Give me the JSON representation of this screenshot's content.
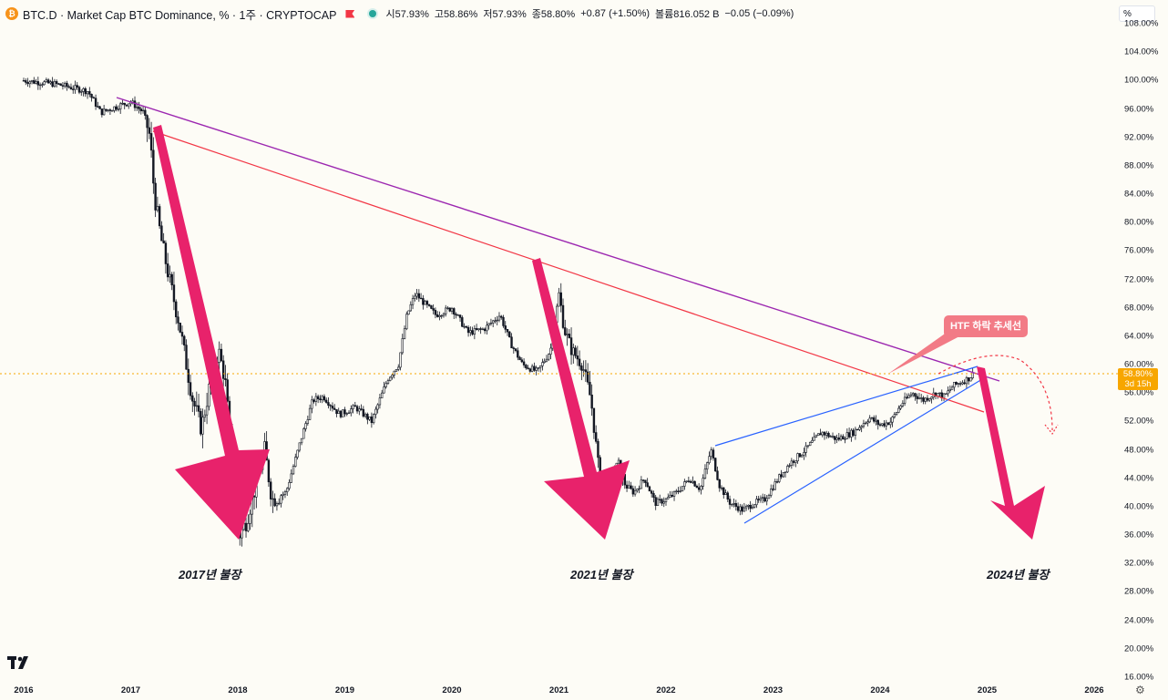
{
  "header": {
    "symbol": "BTC.D · Market Cap BTC Dominance, % · 1주 · CRYPTOCAP",
    "open": "시57.93%",
    "high": "고58.86%",
    "low": "저57.93%",
    "close": "종58.80%",
    "change": "+0.87 (+1.50%)",
    "volume": "볼륨816.052 B",
    "volume_change": "−0.05 (−0.09%)",
    "scale_button": "%"
  },
  "price_label": {
    "value": "58.80%",
    "countdown": "3d 15h"
  },
  "annotations": {
    "callout": "HTF 하락 추세선",
    "bull_2017": "2017년 불장",
    "bull_2021": "2021년 불장",
    "bull_2024": "2024년 불장"
  },
  "colors": {
    "background": "#fdfcf6",
    "candle": "#131722",
    "arrow": "#e8226b",
    "trend_purple": "#9c27b0",
    "trend_red": "#f23645",
    "wedge_blue": "#2962ff",
    "price_line": "#f7a600",
    "callout": "#f27b86"
  },
  "chart_data": {
    "type": "candlestick",
    "title": "BTC.D · Market Cap BTC Dominance, % · 1주 · CRYPTOCAP",
    "y_unit": "%",
    "ylim": [
      16,
      108
    ],
    "y_ticks": [
      "108.00%",
      "104.00%",
      "100.00%",
      "96.00%",
      "92.00%",
      "88.00%",
      "84.00%",
      "80.00%",
      "76.00%",
      "72.00%",
      "68.00%",
      "64.00%",
      "60.00%",
      "56.00%",
      "52.00%",
      "48.00%",
      "44.00%",
      "40.00%",
      "36.00%",
      "32.00%",
      "28.00%",
      "24.00%",
      "20.00%",
      "16.00%"
    ],
    "x_ticks": [
      "2016",
      "2017",
      "2018",
      "2019",
      "2020",
      "2021",
      "2022",
      "2023",
      "2024",
      "2025",
      "2026"
    ],
    "last_value": 58.8,
    "series": [
      {
        "name": "BTC.D",
        "points": [
          [
            2016.0,
            100.0
          ],
          [
            2016.3,
            99.5
          ],
          [
            2016.6,
            98.5
          ],
          [
            2016.72,
            95.5
          ],
          [
            2016.9,
            96.5
          ],
          [
            2017.0,
            97.0
          ],
          [
            2017.12,
            95.5
          ],
          [
            2017.18,
            92.0
          ],
          [
            2017.22,
            84.0
          ],
          [
            2017.28,
            78.0
          ],
          [
            2017.36,
            72.0
          ],
          [
            2017.45,
            66.0
          ],
          [
            2017.52,
            60.0
          ],
          [
            2017.58,
            55.0
          ],
          [
            2017.66,
            51.0
          ],
          [
            2017.75,
            58.0
          ],
          [
            2017.82,
            62.0
          ],
          [
            2017.88,
            58.0
          ],
          [
            2017.95,
            46.0
          ],
          [
            2018.02,
            36.0
          ],
          [
            2018.08,
            38.0
          ],
          [
            2018.15,
            42.0
          ],
          [
            2018.25,
            48.0
          ],
          [
            2018.32,
            41.0
          ],
          [
            2018.45,
            42.0
          ],
          [
            2018.6,
            50.0
          ],
          [
            2018.7,
            55.0
          ],
          [
            2018.8,
            55.5
          ],
          [
            2018.95,
            53.0
          ],
          [
            2019.1,
            54.0
          ],
          [
            2019.25,
            52.0
          ],
          [
            2019.4,
            58.0
          ],
          [
            2019.5,
            60.0
          ],
          [
            2019.58,
            67.0
          ],
          [
            2019.66,
            70.0
          ],
          [
            2019.75,
            68.5
          ],
          [
            2019.85,
            67.0
          ],
          [
            2020.0,
            68.0
          ],
          [
            2020.15,
            64.5
          ],
          [
            2020.3,
            65.0
          ],
          [
            2020.45,
            67.0
          ],
          [
            2020.55,
            63.0
          ],
          [
            2020.66,
            60.0
          ],
          [
            2020.8,
            59.0
          ],
          [
            2020.92,
            62.0
          ],
          [
            2021.0,
            70.0
          ],
          [
            2021.05,
            65.0
          ],
          [
            2021.12,
            62.0
          ],
          [
            2021.22,
            60.0
          ],
          [
            2021.3,
            55.0
          ],
          [
            2021.38,
            44.0
          ],
          [
            2021.45,
            41.0
          ],
          [
            2021.55,
            46.0
          ],
          [
            2021.62,
            43.0
          ],
          [
            2021.7,
            42.0
          ],
          [
            2021.8,
            44.0
          ],
          [
            2021.9,
            40.5
          ],
          [
            2022.0,
            41.0
          ],
          [
            2022.1,
            42.0
          ],
          [
            2022.22,
            44.0
          ],
          [
            2022.32,
            42.5
          ],
          [
            2022.42,
            48.0
          ],
          [
            2022.5,
            43.0
          ],
          [
            2022.6,
            40.5
          ],
          [
            2022.72,
            39.5
          ],
          [
            2022.82,
            40.5
          ],
          [
            2022.92,
            41.0
          ],
          [
            2023.05,
            44.0
          ],
          [
            2023.15,
            46.0
          ],
          [
            2023.3,
            48.0
          ],
          [
            2023.45,
            50.5
          ],
          [
            2023.6,
            49.5
          ],
          [
            2023.75,
            50.5
          ],
          [
            2023.9,
            52.5
          ],
          [
            2024.0,
            51.5
          ],
          [
            2024.1,
            52.0
          ],
          [
            2024.2,
            54.5
          ],
          [
            2024.3,
            56.0
          ],
          [
            2024.4,
            55.0
          ],
          [
            2024.52,
            56.0
          ],
          [
            2024.6,
            55.5
          ],
          [
            2024.68,
            57.0
          ],
          [
            2024.75,
            57.5
          ],
          [
            2024.82,
            58.0
          ],
          [
            2024.88,
            58.8
          ]
        ]
      }
    ]
  }
}
